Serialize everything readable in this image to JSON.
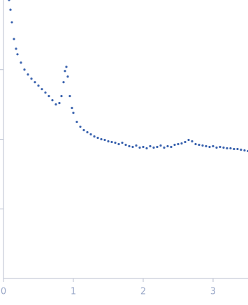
{
  "chart_data": {
    "type": "scatter",
    "series": [
      {
        "color": "#3a63ae",
        "x": [
          0.08,
          0.1,
          0.12,
          0.15,
          0.18,
          0.2,
          0.25,
          0.3,
          0.35,
          0.4,
          0.45,
          0.5,
          0.55,
          0.6,
          0.65,
          0.7,
          0.75,
          0.8,
          0.83,
          0.86,
          0.88,
          0.9,
          0.92,
          0.95,
          0.98,
          1.0,
          1.05,
          1.1,
          1.15,
          1.2,
          1.25,
          1.3,
          1.35,
          1.4,
          1.45,
          1.5,
          1.55,
          1.6,
          1.65,
          1.7,
          1.75,
          1.8,
          1.85,
          1.9,
          1.95,
          2.0,
          2.05,
          2.1,
          2.15,
          2.2,
          2.25,
          2.3,
          2.35,
          2.4,
          2.45,
          2.5,
          2.55,
          2.6,
          2.65,
          2.7,
          2.75,
          2.8,
          2.85,
          2.9,
          2.95,
          3.0,
          3.05,
          3.1,
          3.15,
          3.2,
          3.25,
          3.3,
          3.35,
          3.4,
          3.45,
          3.5
        ],
        "values": [
          4.0,
          3.86,
          3.68,
          3.44,
          3.3,
          3.22,
          3.1,
          3.0,
          2.93,
          2.87,
          2.82,
          2.77,
          2.72,
          2.67,
          2.62,
          2.56,
          2.5,
          2.52,
          2.62,
          2.82,
          2.98,
          3.04,
          2.9,
          2.62,
          2.45,
          2.38,
          2.25,
          2.18,
          2.13,
          2.1,
          2.07,
          2.04,
          2.02,
          2.0,
          1.99,
          1.97,
          1.96,
          1.95,
          1.93,
          1.95,
          1.92,
          1.9,
          1.89,
          1.91,
          1.88,
          1.89,
          1.87,
          1.9,
          1.88,
          1.89,
          1.91,
          1.88,
          1.9,
          1.89,
          1.92,
          1.93,
          1.94,
          1.96,
          1.99,
          1.97,
          1.93,
          1.92,
          1.91,
          1.9,
          1.89,
          1.9,
          1.88,
          1.89,
          1.88,
          1.87,
          1.87,
          1.86,
          1.86,
          1.85,
          1.84,
          1.83
        ]
      }
    ],
    "xlim": [
      0,
      3.5
    ],
    "xticks": [
      0,
      1,
      2,
      3
    ],
    "ylim": [
      0,
      4
    ],
    "yticks": [
      1,
      2,
      3
    ]
  }
}
